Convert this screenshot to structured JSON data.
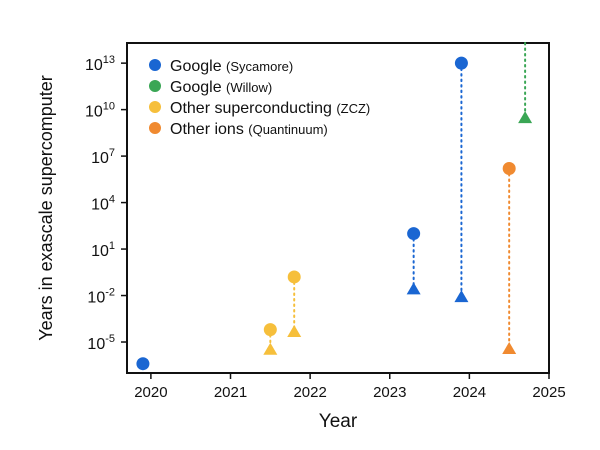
{
  "chart_data": {
    "type": "scatter",
    "title": "",
    "xlabel": "Year",
    "ylabel": "Years in exascale supercomputer",
    "xlim": [
      2019.7,
      2025.0
    ],
    "ylim_log10": [
      -7,
      14.3
    ],
    "y_scale": "log",
    "x_ticks": [
      2020,
      2021,
      2022,
      2023,
      2024,
      2025
    ],
    "y_ticks": [
      {
        "exp": 13,
        "label": "10",
        "sup": "13"
      },
      {
        "exp": 10,
        "label": "10",
        "sup": "10"
      },
      {
        "exp": 7,
        "label": "10",
        "sup": "7"
      },
      {
        "exp": 4,
        "label": "10",
        "sup": "4"
      },
      {
        "exp": 1,
        "label": "10",
        "sup": "1"
      },
      {
        "exp": -2,
        "label": "10",
        "sup": "-2"
      },
      {
        "exp": -5,
        "label": "10",
        "sup": "-5"
      }
    ],
    "legend_placement": "top-left",
    "series": [
      {
        "name": "Google",
        "detail": "(Sycamore)",
        "color": "#1a66d2",
        "points": [
          {
            "x": 2019.9,
            "circle_log10": -6.4
          },
          {
            "x": 2023.3,
            "circle_log10": 2.0,
            "triangle_log10": -1.6
          },
          {
            "x": 2023.9,
            "circle_log10": 13.0,
            "triangle_log10": -2.1
          }
        ]
      },
      {
        "name": "Google",
        "detail": "(Willow)",
        "color": "#3aa655",
        "points": [
          {
            "x": 2024.7,
            "circle_offscale_top": true,
            "triangle_log10": 9.45
          }
        ]
      },
      {
        "name": "Other superconducting",
        "detail": "(ZCZ)",
        "color": "#f6bf3b",
        "points": [
          {
            "x": 2021.5,
            "circle_log10": -4.2,
            "triangle_log10": -5.5
          },
          {
            "x": 2021.8,
            "circle_log10": -0.8,
            "triangle_log10": -4.35
          }
        ]
      },
      {
        "name": "Other ions",
        "detail": "(Quantinuum)",
        "color": "#f08a30",
        "points": [
          {
            "x": 2024.5,
            "circle_log10": 6.2,
            "triangle_log10": -5.45
          }
        ]
      }
    ]
  }
}
